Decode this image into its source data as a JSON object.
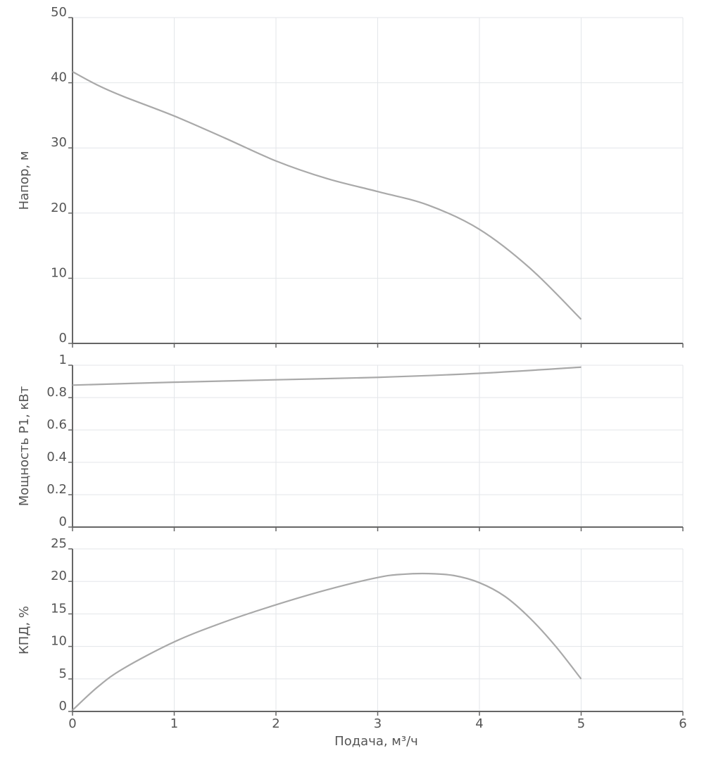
{
  "chart_data": [
    {
      "type": "line",
      "id": "head",
      "ylabel": "Напор, м",
      "xlim": [
        0,
        6
      ],
      "ylim": [
        0,
        50
      ],
      "x_ticks": [
        0,
        1,
        2,
        3,
        4,
        5,
        6
      ],
      "y_ticks": [
        "0",
        "10",
        "20",
        "30",
        "40",
        "50"
      ],
      "grid": true,
      "series": [
        {
          "name": "Напор",
          "x": [
            0,
            0.25,
            0.5,
            1,
            1.5,
            2,
            2.5,
            3,
            3.5,
            4,
            4.5,
            5
          ],
          "y": [
            41.7,
            39.6,
            37.9,
            34.9,
            31.5,
            28.0,
            25.3,
            23.3,
            21.2,
            17.5,
            11.5,
            3.7
          ]
        }
      ]
    },
    {
      "type": "line",
      "id": "power",
      "ylabel": "Мощность Р1, кВт",
      "xlim": [
        0,
        6
      ],
      "ylim": [
        0,
        1
      ],
      "x_ticks": [
        0,
        1,
        2,
        3,
        4,
        5,
        6
      ],
      "y_ticks": [
        "0",
        "0.2",
        "0.4",
        "0.6",
        "0.8",
        "1"
      ],
      "grid": true,
      "series": [
        {
          "name": "Мощность Р1",
          "x": [
            0,
            1,
            2,
            3,
            4,
            5
          ],
          "y": [
            0.877,
            0.895,
            0.91,
            0.925,
            0.95,
            0.988
          ]
        }
      ]
    },
    {
      "type": "line",
      "id": "efficiency",
      "ylabel": "КПД, %",
      "xlabel": "Подача, м³/ч",
      "xlim": [
        0,
        6
      ],
      "ylim": [
        0,
        25
      ],
      "x_ticks": [
        "0",
        "1",
        "2",
        "3",
        "4",
        "5",
        "6"
      ],
      "y_ticks": [
        "0",
        "5",
        "10",
        "15",
        "20",
        "25"
      ],
      "grid": true,
      "series": [
        {
          "name": "КПД",
          "x": [
            0,
            0.25,
            0.5,
            1,
            1.5,
            2,
            2.5,
            3,
            3.25,
            3.5,
            3.75,
            4,
            4.25,
            4.5,
            4.75,
            5
          ],
          "y": [
            0.2,
            3.8,
            6.6,
            10.7,
            13.8,
            16.4,
            18.7,
            20.6,
            21.1,
            21.2,
            20.9,
            19.8,
            17.7,
            14.3,
            10.0,
            5.0
          ]
        }
      ]
    }
  ]
}
